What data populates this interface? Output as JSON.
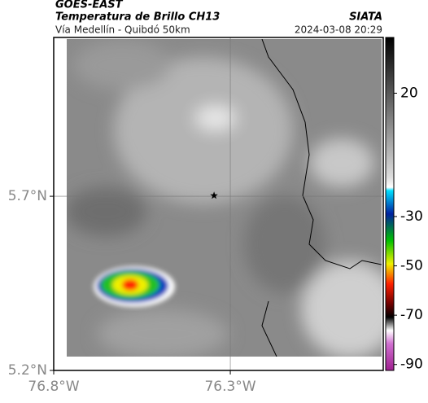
{
  "header": {
    "source": "GOES-EAST",
    "product": "Temperatura de Brillo CH13",
    "agency": "SIATA",
    "route": "Vía Medellín - Quibdó 50km",
    "datetime": "2024-03-08 20:29"
  },
  "map": {
    "lonlim": [
      -76.8,
      -75.867
    ],
    "latlim": [
      5.2,
      6.156
    ],
    "lonticks": [
      {
        "value": -76.8,
        "label": "76.8°W"
      },
      {
        "value": -76.3,
        "label": "76.3°W"
      }
    ],
    "latticks": [
      {
        "value": 5.2,
        "label": "5.2°N"
      },
      {
        "value": 5.7,
        "label": "5.7°N"
      }
    ],
    "grid": true,
    "marker": {
      "lon": -76.346,
      "lat": 5.702
    }
  },
  "colorbar": {
    "lim": [
      -92.4,
      42.6
    ],
    "ticks": [
      20,
      -30,
      -50,
      -70,
      -90
    ]
  }
}
